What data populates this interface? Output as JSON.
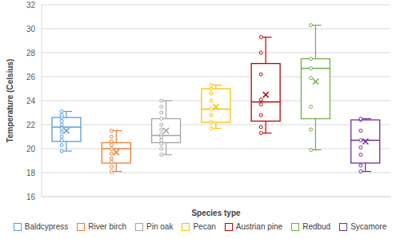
{
  "chart_data": {
    "type": "box",
    "x_label": "Species type",
    "y_label": "Temperature (Celsius)",
    "ylim": [
      16,
      32
    ],
    "yticks": [
      16,
      18,
      20,
      22,
      24,
      26,
      28,
      30,
      32
    ],
    "grid": true,
    "legend": "bottom",
    "tick_labels": "y",
    "series": [
      {
        "name": "Baldcypress",
        "color": "#5b9bd5",
        "min": 19.8,
        "q1": 20.6,
        "median": 21.8,
        "q3": 22.6,
        "max": 23.1,
        "mean": 21.5,
        "points": [
          19.8,
          20.3,
          20.7,
          21.0,
          21.4,
          21.7,
          22.0,
          22.3,
          22.6,
          22.8,
          23.1
        ]
      },
      {
        "name": "River birch",
        "color": "#ed7d31",
        "min": 18.1,
        "q1": 18.8,
        "median": 20.0,
        "q3": 20.5,
        "max": 21.5,
        "mean": 19.7,
        "points": [
          18.1,
          18.5,
          18.9,
          19.2,
          19.6,
          20.0,
          20.3,
          20.6,
          21.0,
          21.5
        ]
      },
      {
        "name": "Pin oak",
        "color": "#a5a5a5",
        "min": 19.5,
        "q1": 20.5,
        "median": 21.1,
        "q3": 22.5,
        "max": 24.0,
        "mean": 21.5,
        "points": [
          19.5,
          20.0,
          20.4,
          20.7,
          21.0,
          21.2,
          21.6,
          22.0,
          22.5,
          23.0,
          23.5,
          24.0
        ]
      },
      {
        "name": "Pecan",
        "color": "#ffc000",
        "min": 21.7,
        "q1": 22.2,
        "median": 23.3,
        "q3": 25.0,
        "max": 25.3,
        "mean": 23.5,
        "points": [
          21.7,
          22.2,
          22.8,
          23.3,
          24.0,
          24.6,
          25.0,
          25.3
        ]
      },
      {
        "name": "Austrian pine",
        "color": "#c00000",
        "min": 21.3,
        "q1": 22.3,
        "median": 23.9,
        "q3": 27.1,
        "max": 29.3,
        "mean": 24.5,
        "points": [
          21.3,
          21.8,
          22.8,
          23.7,
          24.1,
          26.2,
          28.0,
          29.3
        ]
      },
      {
        "name": "Redbud",
        "color": "#70ad47",
        "min": 19.9,
        "q1": 22.5,
        "median": 26.7,
        "q3": 27.5,
        "max": 30.3,
        "mean": 25.6,
        "points": [
          19.9,
          21.6,
          23.5,
          25.9,
          26.7,
          27.5,
          30.3
        ]
      },
      {
        "name": "Sycamore",
        "color": "#7030a0",
        "min": 18.1,
        "q1": 18.8,
        "median": 20.7,
        "q3": 22.4,
        "max": 22.5,
        "mean": 20.6,
        "points": [
          18.1,
          18.6,
          19.5,
          20.1,
          20.7,
          21.5,
          22.4,
          22.5
        ]
      }
    ]
  }
}
